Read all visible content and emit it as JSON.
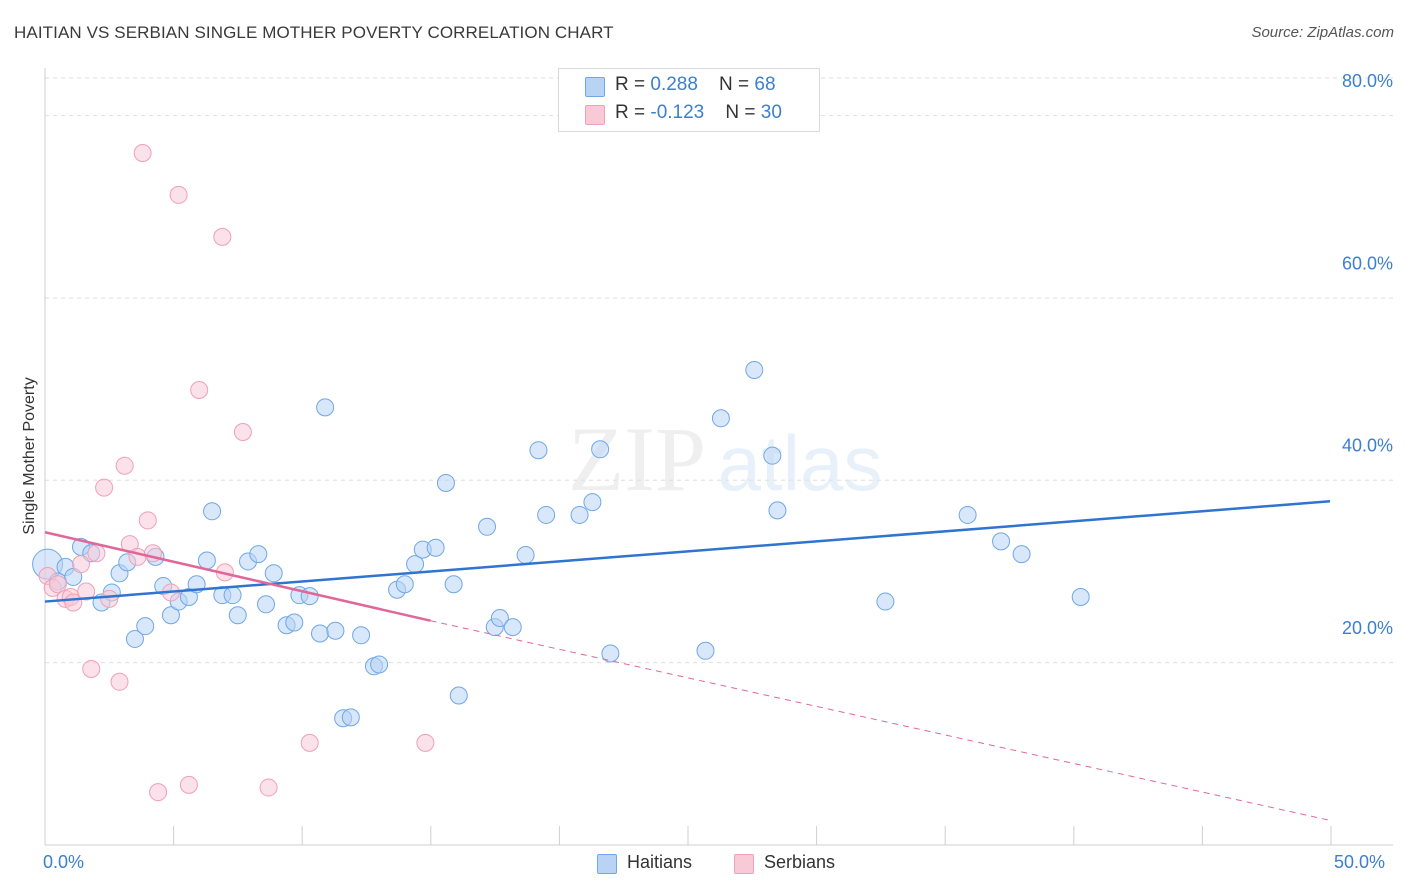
{
  "header": {
    "title": "HAITIAN VS SERBIAN SINGLE MOTHER POVERTY CORRELATION CHART",
    "source": "Source: ZipAtlas.com"
  },
  "watermark": {
    "zip": "ZIP",
    "atlas": "atlas"
  },
  "colors": {
    "haitians": "#6fa8e6",
    "haitians_fill": "#b8d3f4",
    "haitians_line": "#2f74cf",
    "serbians": "#f0a0b8",
    "serbians_fill": "#f8c9d7",
    "serbians_line": "#e0679a",
    "axis_text": "#3c7fcf"
  },
  "legend": {
    "rows": [
      {
        "r_label": "R = ",
        "r_value": "0.288",
        "n_label": "N = ",
        "n_value": "68"
      },
      {
        "r_label": "R = ",
        "r_value": "-0.123",
        "n_label": "N = ",
        "n_value": "30"
      }
    ]
  },
  "bottom_legend": {
    "haitians": "Haitians",
    "serbians": "Serbians"
  },
  "chart_data": {
    "type": "scatter",
    "title": "HAITIAN VS SERBIAN SINGLE MOTHER POVERTY CORRELATION CHART",
    "xlabel": "",
    "ylabel": "Single Mother Poverty",
    "xlim": [
      0,
      50
    ],
    "ylim": [
      0,
      85
    ],
    "x_corner_labels": [
      "0.0%",
      "50.0%"
    ],
    "y_ticks": [
      {
        "value": 20,
        "label": "20.0%"
      },
      {
        "value": 40,
        "label": "40.0%"
      },
      {
        "value": 60,
        "label": "60.0%"
      },
      {
        "value": 80,
        "label": "80.0%"
      }
    ],
    "grid": true,
    "legend_position": "top-center",
    "series": [
      {
        "name": "Haitians",
        "r": 0.288,
        "n": 68,
        "trend": {
          "x": [
            0,
            50
          ],
          "y": [
            26.7,
            37.7
          ],
          "style": "solid"
        },
        "points": [
          [
            0.1,
            30.8
          ],
          [
            0.5,
            28.9
          ],
          [
            0.8,
            30.5
          ],
          [
            1.1,
            29.4
          ],
          [
            1.4,
            32.7
          ],
          [
            1.8,
            32.0
          ],
          [
            2.2,
            26.6
          ],
          [
            2.6,
            27.7
          ],
          [
            2.9,
            29.8
          ],
          [
            3.2,
            31.0
          ],
          [
            3.5,
            22.6
          ],
          [
            3.9,
            24.0
          ],
          [
            4.3,
            31.6
          ],
          [
            4.6,
            28.4
          ],
          [
            4.9,
            25.2
          ],
          [
            5.2,
            26.7
          ],
          [
            5.6,
            27.2
          ],
          [
            5.9,
            28.6
          ],
          [
            6.3,
            31.2
          ],
          [
            6.5,
            36.6
          ],
          [
            6.9,
            27.4
          ],
          [
            7.3,
            27.4
          ],
          [
            7.5,
            25.2
          ],
          [
            7.9,
            31.1
          ],
          [
            8.3,
            31.9
          ],
          [
            8.6,
            26.4
          ],
          [
            8.9,
            29.8
          ],
          [
            9.4,
            24.1
          ],
          [
            9.7,
            24.4
          ],
          [
            9.9,
            27.4
          ],
          [
            10.3,
            27.3
          ],
          [
            10.7,
            23.2
          ],
          [
            10.9,
            48.0
          ],
          [
            11.3,
            23.5
          ],
          [
            11.6,
            13.9
          ],
          [
            11.9,
            14.0
          ],
          [
            12.3,
            23.0
          ],
          [
            12.8,
            19.6
          ],
          [
            13.0,
            19.8
          ],
          [
            13.7,
            28.0
          ],
          [
            14.0,
            28.6
          ],
          [
            14.4,
            30.8
          ],
          [
            14.7,
            32.4
          ],
          [
            15.2,
            32.6
          ],
          [
            15.6,
            39.7
          ],
          [
            15.9,
            28.6
          ],
          [
            16.1,
            16.4
          ],
          [
            17.2,
            34.9
          ],
          [
            17.5,
            23.9
          ],
          [
            17.7,
            24.9
          ],
          [
            18.2,
            23.9
          ],
          [
            18.7,
            31.8
          ],
          [
            19.2,
            43.3
          ],
          [
            19.5,
            36.2
          ],
          [
            20.8,
            36.2
          ],
          [
            21.3,
            37.6
          ],
          [
            21.6,
            43.4
          ],
          [
            22.0,
            21.0
          ],
          [
            25.7,
            21.3
          ],
          [
            26.3,
            46.8
          ],
          [
            27.6,
            52.1
          ],
          [
            28.3,
            42.7
          ],
          [
            28.5,
            36.7
          ],
          [
            32.7,
            26.7
          ],
          [
            35.9,
            36.2
          ],
          [
            37.2,
            33.3
          ],
          [
            38.0,
            31.9
          ],
          [
            40.3,
            27.2
          ]
        ]
      },
      {
        "name": "Serbians",
        "r": -0.123,
        "n": 30,
        "trend": {
          "x": [
            0,
            15
          ],
          "y": [
            34.3,
            24.6
          ],
          "style": "solid",
          "extended_to": [
            50,
            2.7
          ],
          "extended_style": "dashed"
        },
        "points": [
          [
            0.1,
            29.5
          ],
          [
            0.3,
            28.2
          ],
          [
            0.5,
            28.6
          ],
          [
            0.8,
            27.0
          ],
          [
            1.0,
            27.2
          ],
          [
            1.1,
            26.6
          ],
          [
            1.4,
            30.8
          ],
          [
            1.6,
            27.8
          ],
          [
            1.8,
            19.3
          ],
          [
            2.0,
            32.0
          ],
          [
            2.3,
            39.2
          ],
          [
            2.5,
            27.0
          ],
          [
            2.9,
            17.9
          ],
          [
            3.1,
            41.6
          ],
          [
            3.3,
            33.0
          ],
          [
            3.6,
            31.6
          ],
          [
            3.8,
            75.9
          ],
          [
            4.0,
            35.6
          ],
          [
            4.2,
            32.0
          ],
          [
            4.4,
            5.8
          ],
          [
            4.9,
            27.7
          ],
          [
            5.2,
            71.3
          ],
          [
            5.6,
            6.6
          ],
          [
            6.0,
            49.9
          ],
          [
            6.9,
            66.7
          ],
          [
            7.0,
            29.9
          ],
          [
            7.7,
            45.3
          ],
          [
            8.7,
            6.3
          ],
          [
            10.3,
            11.2
          ],
          [
            14.8,
            11.2
          ]
        ]
      }
    ]
  }
}
